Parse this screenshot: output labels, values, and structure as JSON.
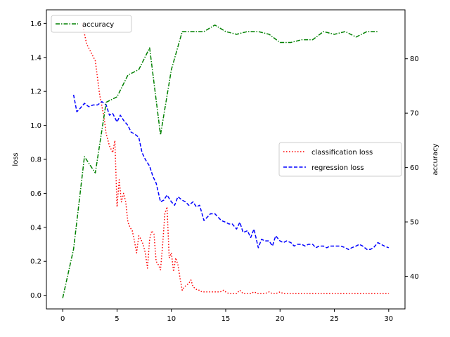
{
  "chart_data": {
    "type": "line",
    "xlim": [
      -1.5,
      31.5
    ],
    "x_ticks": [
      0,
      5,
      10,
      15,
      20,
      25,
      30
    ],
    "left_axis": {
      "ylabel": "loss",
      "ylim": [
        -0.08,
        1.68
      ],
      "ticks": [
        0.0,
        0.2,
        0.4,
        0.6,
        0.8,
        1.0,
        1.2,
        1.4,
        1.6
      ]
    },
    "right_axis": {
      "ylabel": "accuracy",
      "ylim": [
        34.0,
        89.0
      ],
      "ticks": [
        40,
        50,
        60,
        70,
        80
      ]
    },
    "legends": {
      "upper_left": [
        "accuracy"
      ],
      "center_right": [
        "classification loss",
        "regression loss"
      ]
    },
    "series": [
      {
        "name": "classification loss",
        "axis": "left",
        "color": "#ff0000",
        "style": "dotted",
        "x": [
          1.8,
          2.2,
          2.6,
          3.0,
          3.4,
          3.8,
          4.0,
          4.3,
          4.6,
          4.8,
          5.0,
          5.2,
          5.4,
          5.6,
          5.8,
          6.0,
          6.2,
          6.4,
          6.6,
          6.8,
          7.0,
          7.2,
          7.4,
          7.6,
          7.8,
          8.0,
          8.2,
          8.4,
          8.6,
          8.8,
          9.0,
          9.2,
          9.4,
          9.6,
          9.8,
          10.0,
          10.2,
          10.4,
          10.6,
          10.8,
          11.0,
          11.2,
          11.4,
          11.6,
          11.8,
          12.0,
          12.2,
          12.4,
          12.6,
          12.8,
          13.0,
          13.2,
          13.4,
          13.6,
          13.8,
          14.0,
          14.2,
          14.5,
          14.8,
          15.0,
          15.3,
          15.6,
          16.0,
          16.3,
          16.6,
          17.0,
          17.3,
          17.6,
          18.0,
          18.3,
          18.6,
          19.0,
          19.3,
          19.6,
          20.0,
          20.3,
          20.6,
          21.0,
          21.5,
          22.0,
          22.5,
          23.0,
          23.5,
          24.0,
          24.5,
          25.0,
          25.5,
          26.0,
          26.5,
          27.0,
          27.5,
          28.0,
          28.5,
          29.0,
          29.5,
          30.0
        ],
        "y": [
          1.6,
          1.48,
          1.43,
          1.38,
          1.18,
          1.05,
          0.95,
          0.88,
          0.84,
          0.91,
          0.52,
          0.68,
          0.55,
          0.6,
          0.55,
          0.43,
          0.4,
          0.38,
          0.32,
          0.25,
          0.35,
          0.33,
          0.3,
          0.25,
          0.16,
          0.33,
          0.38,
          0.36,
          0.2,
          0.18,
          0.15,
          0.3,
          0.48,
          0.52,
          0.22,
          0.25,
          0.14,
          0.22,
          0.18,
          0.1,
          0.03,
          0.05,
          0.06,
          0.07,
          0.09,
          0.05,
          0.04,
          0.03,
          0.03,
          0.02,
          0.02,
          0.02,
          0.02,
          0.02,
          0.02,
          0.02,
          0.02,
          0.02,
          0.03,
          0.02,
          0.01,
          0.01,
          0.01,
          0.03,
          0.01,
          0.01,
          0.01,
          0.02,
          0.01,
          0.01,
          0.01,
          0.02,
          0.01,
          0.01,
          0.02,
          0.01,
          0.01,
          0.01,
          0.01,
          0.01,
          0.01,
          0.01,
          0.01,
          0.01,
          0.01,
          0.01,
          0.01,
          0.01,
          0.01,
          0.01,
          0.01,
          0.01,
          0.01,
          0.01,
          0.01,
          0.01
        ]
      },
      {
        "name": "regression loss",
        "axis": "left",
        "color": "#0000ff",
        "style": "dashed",
        "x": [
          1.0,
          1.3,
          1.6,
          2.0,
          2.4,
          2.8,
          3.2,
          3.6,
          4.0,
          4.3,
          4.6,
          5.0,
          5.3,
          5.6,
          6.0,
          6.3,
          6.6,
          7.0,
          7.3,
          7.6,
          8.0,
          8.3,
          8.6,
          9.0,
          9.3,
          9.6,
          10.0,
          10.3,
          10.6,
          11.0,
          11.3,
          11.6,
          12.0,
          12.3,
          12.6,
          13.0,
          13.3,
          13.6,
          14.0,
          14.3,
          14.6,
          15.0,
          15.3,
          15.6,
          16.0,
          16.3,
          16.6,
          17.0,
          17.3,
          17.6,
          18.0,
          18.3,
          18.6,
          19.0,
          19.3,
          19.6,
          20.0,
          20.3,
          20.6,
          21.0,
          21.3,
          21.6,
          22.0,
          22.3,
          22.6,
          23.0,
          23.3,
          23.6,
          24.0,
          24.3,
          24.6,
          25.0,
          25.3,
          25.6,
          26.0,
          26.3,
          26.6,
          27.0,
          27.3,
          27.6,
          28.0,
          28.3,
          28.6,
          29.0,
          29.3,
          29.6,
          30.0
        ],
        "y": [
          1.18,
          1.08,
          1.1,
          1.13,
          1.11,
          1.12,
          1.12,
          1.14,
          1.12,
          1.06,
          1.07,
          1.02,
          1.06,
          1.03,
          1.0,
          0.96,
          0.95,
          0.93,
          0.84,
          0.8,
          0.76,
          0.7,
          0.66,
          0.55,
          0.56,
          0.59,
          0.55,
          0.53,
          0.58,
          0.56,
          0.55,
          0.53,
          0.55,
          0.52,
          0.53,
          0.44,
          0.46,
          0.48,
          0.48,
          0.46,
          0.44,
          0.43,
          0.42,
          0.42,
          0.39,
          0.43,
          0.37,
          0.38,
          0.34,
          0.39,
          0.28,
          0.33,
          0.32,
          0.32,
          0.29,
          0.35,
          0.32,
          0.31,
          0.32,
          0.31,
          0.29,
          0.3,
          0.3,
          0.29,
          0.3,
          0.3,
          0.28,
          0.29,
          0.29,
          0.28,
          0.29,
          0.29,
          0.29,
          0.29,
          0.28,
          0.27,
          0.28,
          0.29,
          0.3,
          0.29,
          0.27,
          0.27,
          0.28,
          0.31,
          0.3,
          0.29,
          0.28
        ]
      },
      {
        "name": "accuracy",
        "axis": "right",
        "color": "#008000",
        "style": "dashdot",
        "x": [
          0,
          1,
          2,
          3,
          4,
          5,
          6,
          7,
          8,
          9,
          10,
          11,
          12,
          13,
          14,
          15,
          16,
          17,
          18,
          19,
          20,
          21,
          22,
          23,
          24,
          25,
          26,
          27,
          28,
          29
        ],
        "y": [
          36,
          45,
          62,
          59,
          72,
          73,
          77,
          78,
          82,
          66,
          78,
          85,
          85,
          85,
          86.2,
          85,
          84.5,
          85,
          85,
          84.5,
          83,
          83,
          83.5,
          83.5,
          85,
          84.5,
          85,
          84,
          85,
          85
        ]
      }
    ]
  }
}
